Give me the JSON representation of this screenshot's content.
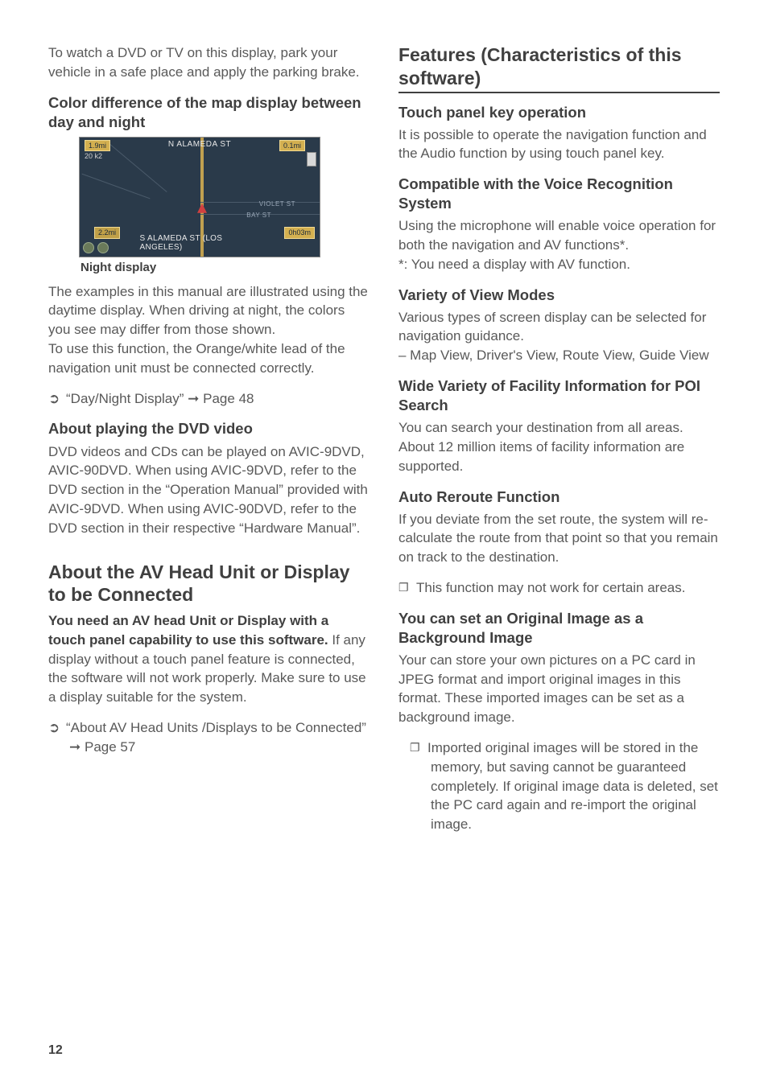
{
  "left": {
    "intro": "To watch a DVD or TV on this display, park your vehicle in a safe place and apply the parking brake.",
    "color_diff_heading": "Color difference of the map display between day and night",
    "map": {
      "top_street": "N ALAMEDA ST",
      "bottom_street": "S ALAMEDA ST (LOS ANGELES)",
      "badge_tl": "1.9mi",
      "badge_tr": "0.1mi",
      "badge_br": "0h03m",
      "badge_bl": "2.2mi",
      "scale": "20 k2",
      "side_a": "VIOLET ST",
      "side_b": "BAY ST",
      "caption": "Night display"
    },
    "examples_text": "The examples in this manual are illustrated using the daytime display. When driving at night, the colors you see may differ from those shown.\nTo use this function, the Orange/white lead of the navigation unit must be connected correctly.",
    "ref1_text": "“Day/Night Display” ",
    "ref1_page": "Page 48",
    "about_dvd_heading": "About playing the DVD video",
    "about_dvd_text": "DVD videos and CDs can be played on AVIC-9DVD, AVIC-90DVD. When using AVIC-9DVD, refer to the DVD section in the “Operation Manual” provided with AVIC-9DVD. When using AVIC-90DVD, refer to the DVD section in their respective “Hardware Manual”.",
    "about_av_heading": "About the AV Head Unit or Display to be Connected",
    "about_av_lead": "You need an AV head Unit or Display with a touch panel capability to use this software.",
    "about_av_rest": " If any display without a touch panel feature is connected, the software will not work properly. Make sure to use a display suitable for the system.",
    "ref2_text": "“About AV Head Units /Displays to be Connected” ",
    "ref2_page": "Page 57"
  },
  "right": {
    "features_heading": "Features (Characteristics of this software)",
    "touch_heading": "Touch panel key operation",
    "touch_text": "It is possible to operate the navigation function and the Audio function by using touch panel key.",
    "voice_heading": "Compatible with the Voice Recognition System",
    "voice_text": "Using the microphone will enable voice operation for both the navigation and AV functions*.\n*: You need a display with AV function.",
    "view_heading": "Variety of View Modes",
    "view_text": "Various types of screen display can be selected for navigation guidance.\n– Map View, Driver's View, Route View, Guide View",
    "poi_heading": "Wide Variety of Facility Information for POI Search",
    "poi_text": "You can search your destination from all areas. About 12 million items of facility information are supported.",
    "reroute_heading": "Auto Reroute Function",
    "reroute_text": "If you deviate from the set route, the system will re-calculate the route from that point so that you remain on track to the destination.",
    "reroute_note": "This function may not work for certain areas.",
    "bg_heading": "You can set an Original Image as a Background Image",
    "bg_text": "Your can store your own pictures on a PC card in JPEG format and import original images in this format. These imported images can be set as a background image.",
    "bg_note": "Imported original images will be stored in the memory, but saving cannot be guaranteed completely. If original image data is deleted, set the PC card again and re-import the original image."
  },
  "page_number": "12",
  "symbols": {
    "ref": "➲",
    "arrow": "➞",
    "note": "❐"
  }
}
